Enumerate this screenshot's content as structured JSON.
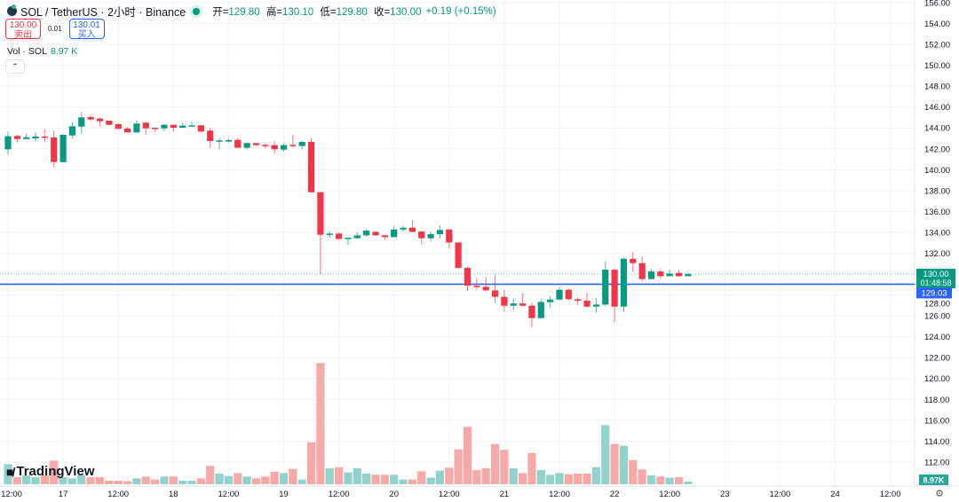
{
  "header": {
    "symbol": "SOL / TetherUS · 2小时 · Binance",
    "open_label": "开=",
    "open": "129.80",
    "high_label": "高=",
    "high": "130.10",
    "low_label": "低=",
    "low": "129.80",
    "close_label": "收=",
    "close": "130.00",
    "change": "+0.19 (+0.15%)",
    "status_color": "#089981"
  },
  "trade": {
    "sell_price": "130.00",
    "sell_label": "卖出",
    "spread": "0.01",
    "buy_price": "130.01",
    "buy_label": "买入"
  },
  "volume_legend": {
    "label": "Vol · SOL",
    "value": "8.97 K"
  },
  "collapse_icon": "chevron-up-icon",
  "watermark": "TradingView",
  "colors": {
    "up": "#089981",
    "down": "#f23645",
    "vol_up": "#92d2cc",
    "vol_down": "#f7a9a7",
    "bid_line": "#2962ff"
  },
  "chart_data": {
    "type": "candlestick",
    "interval": "2h",
    "ylim": [
      111,
      156.3
    ],
    "y_ticks": [
      "156.00",
      "154.00",
      "152.00",
      "150.00",
      "148.00",
      "146.00",
      "144.00",
      "142.00",
      "140.00",
      "138.00",
      "136.00",
      "134.00",
      "132.00",
      "130.00",
      "128.00",
      "126.00",
      "124.00",
      "122.00",
      "120.00",
      "118.00",
      "116.00",
      "114.00",
      "112.00"
    ],
    "x_ticks": [
      {
        "label": "12:00",
        "time": "16 12:00"
      },
      {
        "label": "17",
        "time": "17 00:00"
      },
      {
        "label": "12:00",
        "time": "17 12:00"
      },
      {
        "label": "18",
        "time": "18 00:00"
      },
      {
        "label": "12:00",
        "time": "18 12:00"
      },
      {
        "label": "19",
        "time": "19 00:00"
      },
      {
        "label": "12:00",
        "time": "19 12:00"
      },
      {
        "label": "20",
        "time": "20 00:00"
      },
      {
        "label": "12:00",
        "time": "20 12:00"
      },
      {
        "label": "21",
        "time": "21 00:00"
      },
      {
        "label": "12:00",
        "time": "21 12:00"
      },
      {
        "label": "22",
        "time": "22 00:00"
      },
      {
        "label": "12:00",
        "time": "22 12:00"
      },
      {
        "label": "23",
        "time": "23 00:00"
      },
      {
        "label": "12:00",
        "time": "23 12:00"
      },
      {
        "label": "24",
        "time": "24 00:00"
      },
      {
        "label": "12:00",
        "time": "24 12:00"
      }
    ],
    "last_price": {
      "value": 130.0,
      "label": "130.00",
      "countdown": "01:48:58"
    },
    "bid_line": {
      "value": 129.03,
      "label": "129.03"
    },
    "volume_last_label": "8.97K",
    "columns": [
      "time",
      "open",
      "high",
      "low",
      "close",
      "volume_k"
    ],
    "candles": [
      [
        "16 12:00",
        141.95,
        143.65,
        141.44,
        143.2,
        68
      ],
      [
        "16 14:00",
        143.23,
        143.37,
        142.6,
        142.94,
        24
      ],
      [
        "16 16:00",
        142.94,
        143.42,
        142.94,
        143.11,
        30
      ],
      [
        "16 18:00",
        143.0,
        143.57,
        142.72,
        143.17,
        24
      ],
      [
        "16 20:00",
        143.17,
        143.88,
        142.66,
        143.06,
        30
      ],
      [
        "16 22:00",
        143.08,
        143.74,
        140.2,
        140.73,
        80
      ],
      [
        "17 00:00",
        140.73,
        143.4,
        140.73,
        143.34,
        24
      ],
      [
        "17 02:00",
        143.28,
        144.56,
        142.94,
        144.16,
        20
      ],
      [
        "17 04:00",
        144.13,
        145.55,
        143.51,
        145.01,
        30
      ],
      [
        "17 06:00",
        145.04,
        145.21,
        144.64,
        144.81,
        24
      ],
      [
        "17 08:00",
        144.9,
        144.98,
        144.19,
        144.64,
        24
      ],
      [
        "17 10:00",
        144.7,
        144.7,
        144.25,
        144.3,
        12
      ],
      [
        "17 12:00",
        144.36,
        144.47,
        143.91,
        143.91,
        12
      ],
      [
        "17 14:00",
        143.94,
        144.08,
        143.57,
        143.57,
        10
      ],
      [
        "17 16:00",
        143.57,
        144.7,
        143.57,
        144.42,
        20
      ],
      [
        "17 18:00",
        144.5,
        144.62,
        143.34,
        143.96,
        26
      ],
      [
        "17 20:00",
        144.02,
        144.05,
        143.57,
        143.96,
        16
      ],
      [
        "17 22:00",
        143.96,
        144.36,
        143.74,
        144.3,
        26
      ],
      [
        "18 00:00",
        144.3,
        144.3,
        143.62,
        144.02,
        26
      ],
      [
        "18 02:00",
        144.02,
        144.5,
        144.02,
        144.22,
        12
      ],
      [
        "18 04:00",
        144.19,
        144.64,
        144.19,
        144.25,
        12
      ],
      [
        "18 06:00",
        144.25,
        144.25,
        143.57,
        143.65,
        20
      ],
      [
        "18 08:00",
        143.74,
        144.0,
        142.1,
        142.74,
        62
      ],
      [
        "18 10:00",
        142.74,
        143.0,
        141.95,
        142.8,
        36
      ],
      [
        "18 12:00",
        142.77,
        143.0,
        142.6,
        142.83,
        28
      ],
      [
        "18 14:00",
        142.86,
        143.03,
        142.1,
        142.1,
        38
      ],
      [
        "18 16:00",
        142.1,
        142.6,
        141.92,
        142.55,
        26
      ],
      [
        "18 18:00",
        142.55,
        142.55,
        142.27,
        142.35,
        20
      ],
      [
        "18 20:00",
        142.38,
        142.55,
        142.04,
        142.32,
        26
      ],
      [
        "18 22:00",
        142.35,
        142.72,
        141.53,
        141.95,
        42
      ],
      [
        "19 00:00",
        141.92,
        142.49,
        141.76,
        142.35,
        38
      ],
      [
        "19 02:00",
        142.38,
        143.28,
        142.1,
        142.27,
        52
      ],
      [
        "19 04:00",
        142.27,
        142.77,
        141.95,
        142.66,
        16
      ],
      [
        "19 06:00",
        142.66,
        143.0,
        137.8,
        137.84,
        142
      ],
      [
        "19 08:00",
        137.84,
        137.9,
        130.0,
        133.77,
        410
      ],
      [
        "19 10:00",
        133.77,
        134.05,
        133.5,
        133.88,
        54
      ],
      [
        "19 12:00",
        133.88,
        134.0,
        133.3,
        133.37,
        58
      ],
      [
        "19 14:00",
        133.37,
        133.5,
        132.8,
        133.48,
        40
      ],
      [
        "19 16:00",
        133.43,
        134.0,
        133.4,
        133.71,
        54
      ],
      [
        "19 18:00",
        133.71,
        134.3,
        133.6,
        134.16,
        36
      ],
      [
        "19 20:00",
        134.05,
        134.1,
        133.65,
        133.71,
        32
      ],
      [
        "19 22:00",
        133.71,
        133.75,
        133.3,
        133.54,
        32
      ],
      [
        "20 00:00",
        133.54,
        134.6,
        133.54,
        134.27,
        32
      ],
      [
        "20 02:00",
        134.27,
        134.65,
        134.1,
        134.44,
        16
      ],
      [
        "20 04:00",
        134.44,
        135.2,
        134.0,
        134.05,
        16
      ],
      [
        "20 06:00",
        134.08,
        134.1,
        132.85,
        133.43,
        44
      ],
      [
        "20 08:00",
        133.43,
        134.1,
        133.1,
        133.82,
        22
      ],
      [
        "20 10:00",
        133.82,
        134.65,
        133.4,
        134.22,
        46
      ],
      [
        "20 12:00",
        134.27,
        134.3,
        132.4,
        133.03,
        56
      ],
      [
        "20 14:00",
        133.03,
        133.03,
        130.5,
        130.59,
        118
      ],
      [
        "20 16:00",
        130.59,
        130.7,
        128.4,
        128.89,
        194
      ],
      [
        "20 18:00",
        128.89,
        129.6,
        128.6,
        128.78,
        48
      ],
      [
        "20 20:00",
        128.78,
        129.7,
        128.4,
        128.44,
        54
      ],
      [
        "20 22:00",
        128.44,
        129.9,
        127.2,
        127.82,
        136
      ],
      [
        "21 00:00",
        127.82,
        128.5,
        126.4,
        126.97,
        116
      ],
      [
        "21 02:00",
        126.97,
        127.7,
        126.6,
        127.19,
        54
      ],
      [
        "21 04:00",
        127.19,
        128.2,
        126.9,
        126.97,
        38
      ],
      [
        "21 06:00",
        126.97,
        127.25,
        124.9,
        125.78,
        106
      ],
      [
        "21 08:00",
        125.78,
        127.6,
        125.78,
        127.33,
        48
      ],
      [
        "21 10:00",
        127.31,
        127.9,
        126.8,
        127.56,
        32
      ],
      [
        "21 12:00",
        127.56,
        128.7,
        127.5,
        128.5,
        38
      ],
      [
        "21 14:00",
        128.5,
        128.6,
        127.5,
        127.59,
        34
      ],
      [
        "21 16:00",
        127.59,
        127.75,
        127.0,
        127.45,
        36
      ],
      [
        "21 18:00",
        127.45,
        128.2,
        126.8,
        126.88,
        36
      ],
      [
        "21 20:00",
        126.88,
        127.7,
        126.3,
        127.08,
        58
      ],
      [
        "21 22:00",
        127.08,
        131.2,
        126.9,
        130.42,
        200
      ],
      [
        "22 00:00",
        130.42,
        130.5,
        125.4,
        126.88,
        136
      ],
      [
        "22 02:00",
        126.88,
        131.6,
        126.4,
        131.47,
        130
      ],
      [
        "22 04:00",
        131.47,
        132.1,
        130.2,
        131.05,
        82
      ],
      [
        "22 06:00",
        131.05,
        131.7,
        129.3,
        129.52,
        50
      ],
      [
        "22 08:00",
        129.52,
        130.5,
        129.5,
        130.25,
        30
      ],
      [
        "22 10:00",
        130.25,
        130.5,
        129.6,
        129.8,
        26
      ],
      [
        "22 12:00",
        129.8,
        130.4,
        129.8,
        130.05,
        22
      ],
      [
        "22 14:00",
        130.11,
        130.4,
        129.75,
        129.8,
        24
      ],
      [
        "22 16:00",
        129.8,
        130.1,
        129.8,
        130.0,
        8.97
      ]
    ]
  }
}
